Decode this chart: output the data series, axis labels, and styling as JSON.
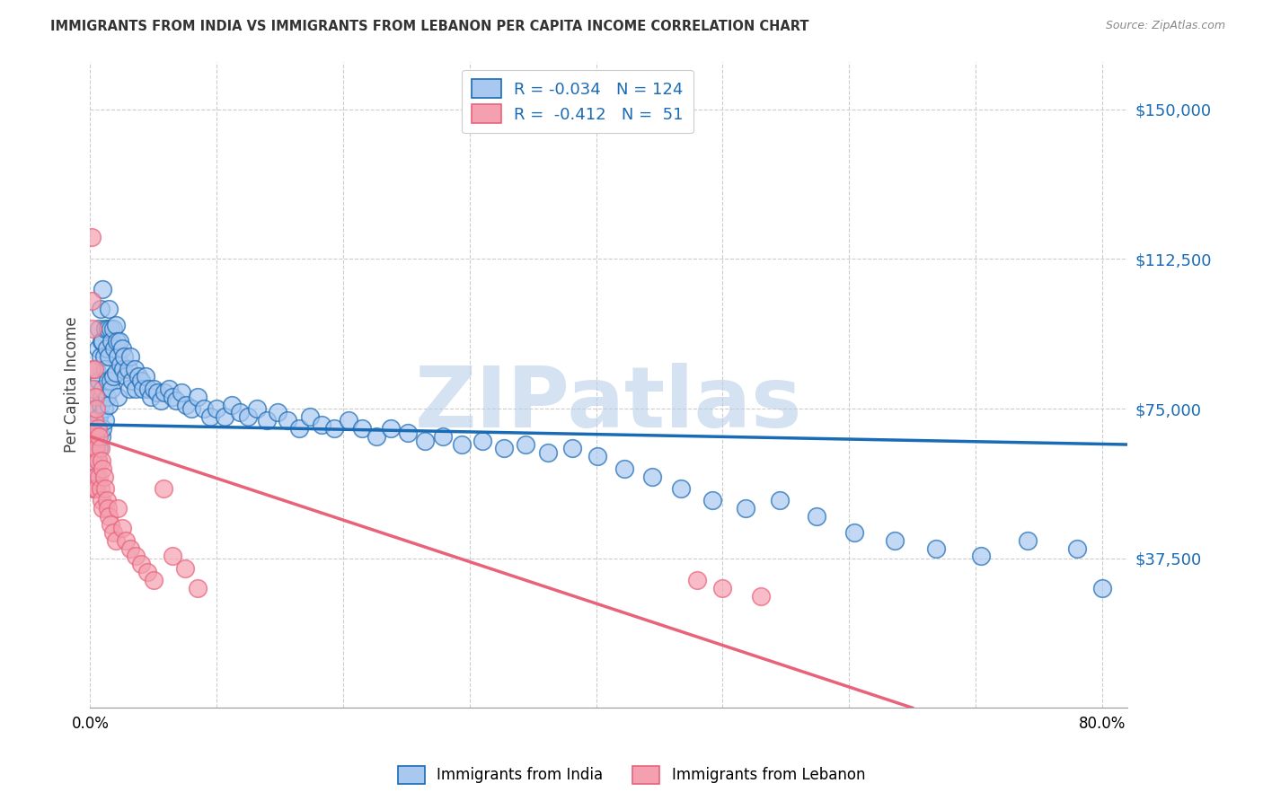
{
  "title": "IMMIGRANTS FROM INDIA VS IMMIGRANTS FROM LEBANON PER CAPITA INCOME CORRELATION CHART",
  "source": "Source: ZipAtlas.com",
  "ylabel": "Per Capita Income",
  "ytick_labels": [
    "$37,500",
    "$75,000",
    "$112,500",
    "$150,000"
  ],
  "ytick_values": [
    37500,
    75000,
    112500,
    150000
  ],
  "ylim": [
    0,
    162000
  ],
  "xlim": [
    0.0,
    0.82
  ],
  "watermark": "ZIPatlas",
  "legend_india_R": "-0.034",
  "legend_india_N": "124",
  "legend_lebanon_R": "-0.412",
  "legend_lebanon_N": "51",
  "india_color": "#a8c8f0",
  "lebanon_color": "#f4a0b0",
  "india_line_color": "#1a6bb5",
  "lebanon_line_color": "#e8637a",
  "india_scatter_x": [
    0.002,
    0.003,
    0.003,
    0.004,
    0.004,
    0.004,
    0.005,
    0.005,
    0.005,
    0.005,
    0.006,
    0.006,
    0.006,
    0.006,
    0.007,
    0.007,
    0.007,
    0.007,
    0.008,
    0.008,
    0.008,
    0.009,
    0.009,
    0.009,
    0.01,
    0.01,
    0.01,
    0.01,
    0.011,
    0.011,
    0.012,
    0.012,
    0.012,
    0.013,
    0.013,
    0.014,
    0.014,
    0.015,
    0.015,
    0.015,
    0.016,
    0.016,
    0.017,
    0.017,
    0.018,
    0.018,
    0.019,
    0.02,
    0.02,
    0.021,
    0.022,
    0.022,
    0.023,
    0.024,
    0.025,
    0.026,
    0.027,
    0.028,
    0.03,
    0.031,
    0.032,
    0.033,
    0.035,
    0.036,
    0.038,
    0.04,
    0.042,
    0.044,
    0.046,
    0.048,
    0.05,
    0.053,
    0.056,
    0.059,
    0.062,
    0.065,
    0.068,
    0.072,
    0.076,
    0.08,
    0.085,
    0.09,
    0.095,
    0.1,
    0.106,
    0.112,
    0.118,
    0.125,
    0.132,
    0.14,
    0.148,
    0.156,
    0.165,
    0.174,
    0.183,
    0.193,
    0.204,
    0.215,
    0.226,
    0.238,
    0.251,
    0.265,
    0.279,
    0.294,
    0.31,
    0.327,
    0.344,
    0.362,
    0.381,
    0.401,
    0.422,
    0.444,
    0.467,
    0.492,
    0.518,
    0.545,
    0.574,
    0.604,
    0.636,
    0.669,
    0.704,
    0.741,
    0.78,
    0.8
  ],
  "india_scatter_y": [
    68000,
    72000,
    60000,
    80000,
    65000,
    55000,
    85000,
    75000,
    68000,
    58000,
    90000,
    78000,
    70000,
    62000,
    95000,
    82000,
    73000,
    65000,
    100000,
    88000,
    76000,
    68000,
    92000,
    78000,
    105000,
    92000,
    80000,
    70000,
    88000,
    75000,
    95000,
    85000,
    72000,
    90000,
    78000,
    95000,
    82000,
    100000,
    88000,
    76000,
    95000,
    82000,
    92000,
    80000,
    95000,
    83000,
    90000,
    96000,
    84000,
    92000,
    88000,
    78000,
    92000,
    86000,
    90000,
    85000,
    88000,
    83000,
    85000,
    80000,
    88000,
    82000,
    85000,
    80000,
    83000,
    82000,
    80000,
    83000,
    80000,
    78000,
    80000,
    79000,
    77000,
    79000,
    80000,
    78000,
    77000,
    79000,
    76000,
    75000,
    78000,
    75000,
    73000,
    75000,
    73000,
    76000,
    74000,
    73000,
    75000,
    72000,
    74000,
    72000,
    70000,
    73000,
    71000,
    70000,
    72000,
    70000,
    68000,
    70000,
    69000,
    67000,
    68000,
    66000,
    67000,
    65000,
    66000,
    64000,
    65000,
    63000,
    60000,
    58000,
    55000,
    52000,
    50000,
    52000,
    48000,
    44000,
    42000,
    40000,
    38000,
    42000,
    40000,
    30000
  ],
  "lebanon_scatter_x": [
    0.001,
    0.001,
    0.001,
    0.002,
    0.002,
    0.002,
    0.002,
    0.002,
    0.003,
    0.003,
    0.003,
    0.003,
    0.004,
    0.004,
    0.004,
    0.005,
    0.005,
    0.005,
    0.006,
    0.006,
    0.007,
    0.007,
    0.008,
    0.008,
    0.009,
    0.009,
    0.01,
    0.01,
    0.011,
    0.012,
    0.013,
    0.014,
    0.015,
    0.016,
    0.018,
    0.02,
    0.022,
    0.025,
    0.028,
    0.032,
    0.036,
    0.04,
    0.045,
    0.05,
    0.058,
    0.065,
    0.075,
    0.085,
    0.48,
    0.5,
    0.53
  ],
  "lebanon_scatter_y": [
    118000,
    102000,
    85000,
    95000,
    80000,
    70000,
    62000,
    55000,
    85000,
    72000,
    65000,
    55000,
    78000,
    68000,
    58000,
    75000,
    65000,
    55000,
    70000,
    62000,
    68000,
    58000,
    65000,
    55000,
    62000,
    52000,
    60000,
    50000,
    58000,
    55000,
    52000,
    50000,
    48000,
    46000,
    44000,
    42000,
    50000,
    45000,
    42000,
    40000,
    38000,
    36000,
    34000,
    32000,
    55000,
    38000,
    35000,
    30000,
    32000,
    30000,
    28000
  ],
  "india_trend_x": [
    0.0,
    0.82
  ],
  "india_trend_y": [
    71000,
    66000
  ],
  "lebanon_trend_x": [
    0.0,
    0.65
  ],
  "lebanon_trend_y": [
    68000,
    0
  ],
  "grid_color": "#cccccc",
  "background_color": "#ffffff",
  "watermark_color": "#b8cfe8",
  "watermark_fontsize": 68
}
